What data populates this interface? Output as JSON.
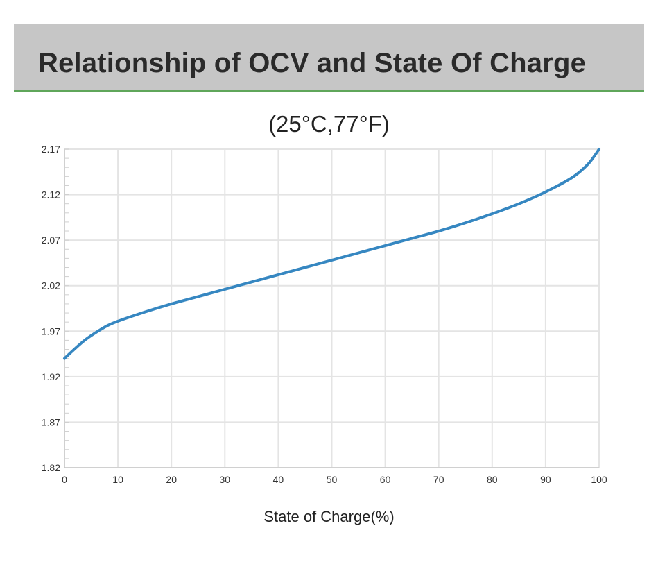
{
  "header": {
    "title": "Relationship of OCV and State Of Charge"
  },
  "chart_data": {
    "type": "line",
    "subtitle": "(25°C,77°F)",
    "xlabel": "State of Charge(%)",
    "ylabel": "",
    "xlim": [
      0,
      100
    ],
    "ylim": [
      1.82,
      2.17
    ],
    "x_ticks": [
      0,
      10,
      20,
      30,
      40,
      50,
      60,
      70,
      80,
      90,
      100
    ],
    "y_ticks": [
      "1.82",
      "1.87",
      "1.92",
      "1.97",
      "2.02",
      "2.07",
      "2.12",
      "2.17"
    ],
    "grid": true,
    "line_color": "#3687c1",
    "series": [
      {
        "x": [
          0,
          2,
          4,
          6,
          8,
          10,
          15,
          20,
          25,
          30,
          35,
          40,
          45,
          50,
          55,
          60,
          65,
          70,
          75,
          80,
          85,
          90,
          95,
          98,
          100
        ],
        "y": [
          1.94,
          1.951,
          1.961,
          1.969,
          1.976,
          1.981,
          1.991,
          2.0,
          2.008,
          2.016,
          2.024,
          2.032,
          2.04,
          2.048,
          2.056,
          2.064,
          2.072,
          2.08,
          2.089,
          2.099,
          2.11,
          2.123,
          2.139,
          2.154,
          2.17
        ]
      }
    ]
  }
}
